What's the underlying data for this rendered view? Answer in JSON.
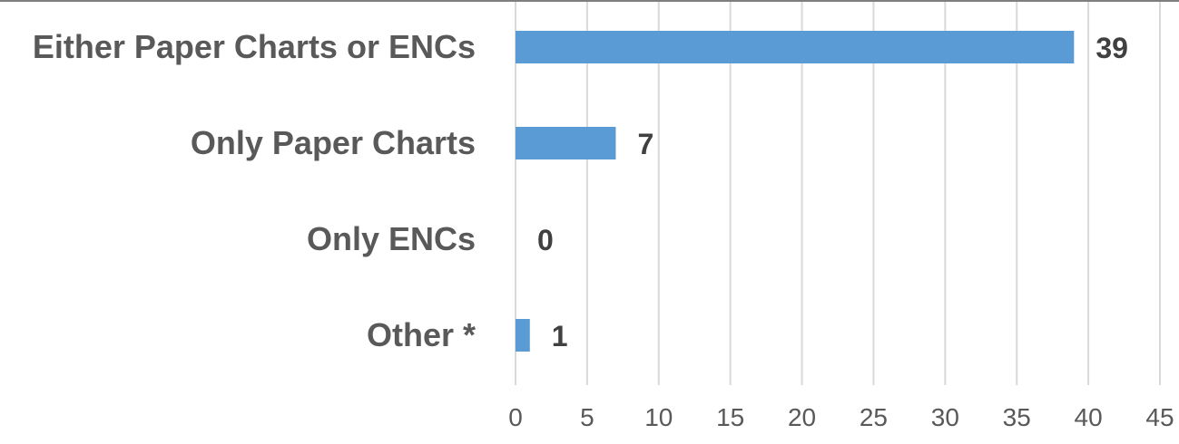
{
  "chart_data": {
    "type": "bar",
    "orientation": "horizontal",
    "categories": [
      "Either Paper Charts or ENCs",
      "Only Paper Charts",
      "Only ENCs",
      "Other *"
    ],
    "values": [
      39,
      7,
      0,
      1
    ],
    "xlim": [
      0,
      45
    ],
    "xticks": [
      0,
      5,
      10,
      15,
      20,
      25,
      30,
      35,
      40,
      45
    ],
    "grid": true,
    "bar_color": "#5b9bd5",
    "title": "",
    "xlabel": "",
    "ylabel": ""
  }
}
